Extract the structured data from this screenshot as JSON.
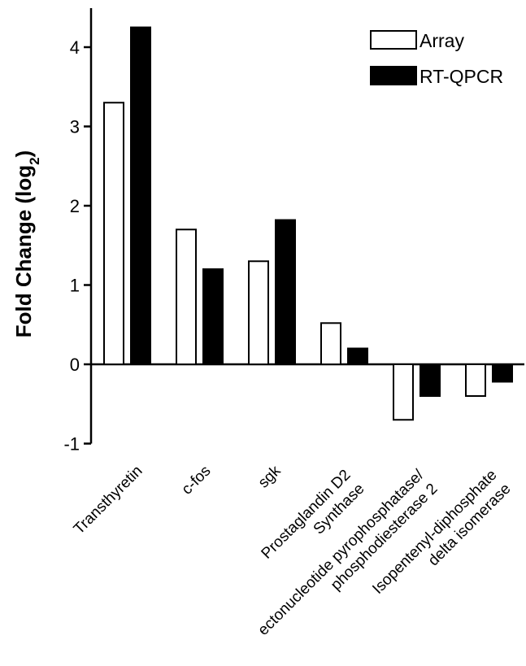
{
  "chart_data": {
    "type": "bar",
    "categories": [
      [
        "Transthyretin"
      ],
      [
        "c-fos"
      ],
      [
        "sgk"
      ],
      [
        "Prostaglandin D2",
        "Synthase"
      ],
      [
        "ectonucleotide pyrophosphatase/",
        "phosphodiesterase 2"
      ],
      [
        "Isopentenyl-diphosphate",
        "delta isomerase"
      ]
    ],
    "series": [
      {
        "name": "Array",
        "values": [
          3.3,
          1.7,
          1.3,
          0.52,
          -0.7,
          -0.4
        ],
        "fill": "#ffffff",
        "stroke": "#000000"
      },
      {
        "name": "RT-QPCR",
        "values": [
          4.25,
          1.2,
          1.82,
          0.2,
          -0.4,
          -0.22
        ],
        "fill": "#000000",
        "stroke": "#000000"
      }
    ],
    "ylabel_main": "Fold Change (log",
    "ylabel_sub": "2",
    "ylabel_close": ")",
    "xlabel": "",
    "ylim": [
      -1,
      4.4
    ],
    "yticks": [
      "-1",
      "0",
      "1",
      "2",
      "3",
      "4"
    ],
    "grid": false,
    "legend_position": "top-right"
  }
}
